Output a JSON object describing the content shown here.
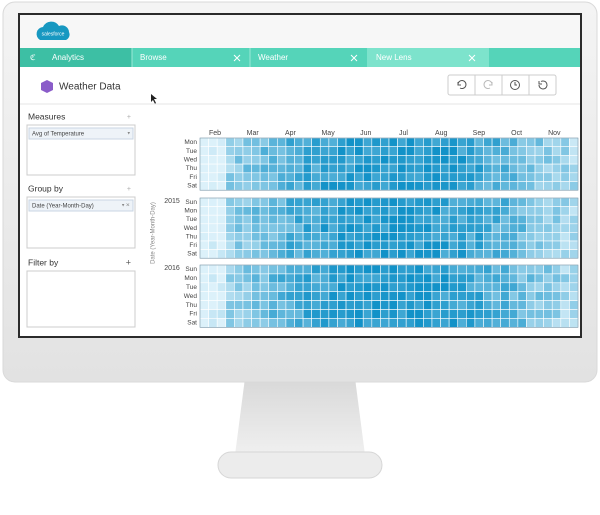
{
  "logo": "salesforce",
  "tabs": [
    "Analytics",
    "Browse",
    "Weather",
    "New Lens"
  ],
  "lens_title": "Weather Data",
  "sidebar": {
    "measures": {
      "title": "Measures",
      "items": [
        "Avg of Temperature"
      ]
    },
    "group_by": {
      "title": "Group by",
      "items": [
        "Date (Year-Month-Day)"
      ]
    },
    "filter_by": {
      "title": "Filter by"
    }
  },
  "heatmap": {
    "axis_label": "Date (Year-Month-Day)",
    "months": [
      "Feb",
      "Mar",
      "Apr",
      "May",
      "Jun",
      "Jul",
      "Aug",
      "Sep",
      "Oct",
      "Nov"
    ],
    "blocks": [
      {
        "days": [
          "Mon",
          "Tue",
          "Wed",
          "Thu",
          "Fri",
          "Sat"
        ]
      },
      {
        "year": "2015",
        "days": [
          "Sun",
          "Mon",
          "Tue",
          "Wed",
          "Thu",
          "Fri",
          "Sat"
        ]
      },
      {
        "year": "2016",
        "days": [
          "Sun",
          "Mon",
          "Tue",
          "Wed",
          "Thu",
          "Fri",
          "Sat"
        ]
      }
    ]
  }
}
